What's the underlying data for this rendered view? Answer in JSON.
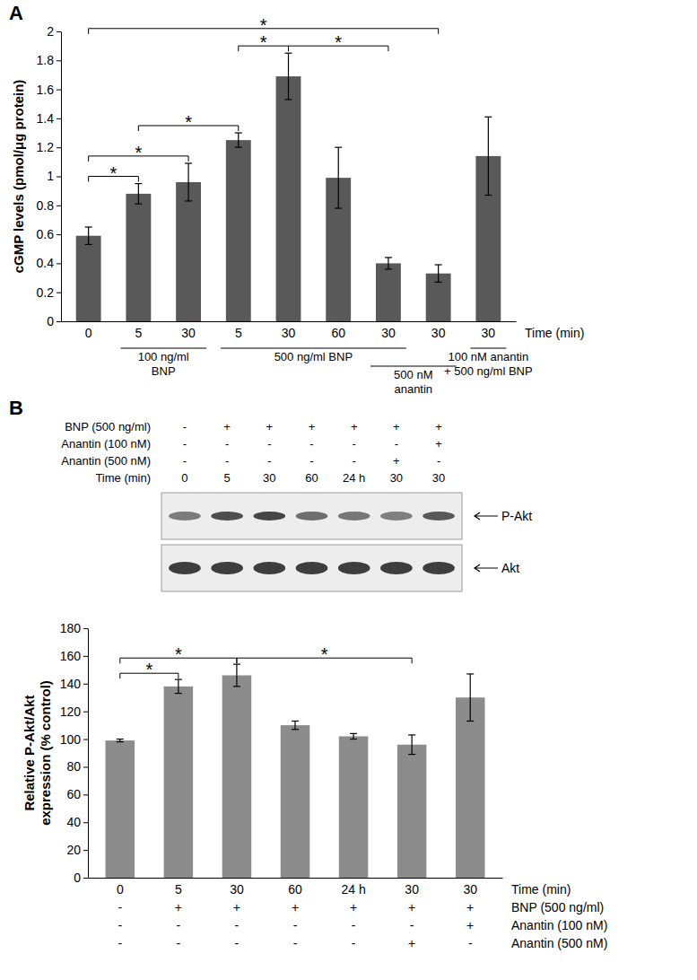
{
  "chart_data": [
    {
      "panel_label": "A",
      "type": "bar",
      "y_label": [
        "cGMP levels (pmol/μg protein)"
      ],
      "x_label": "Time (min)",
      "categories": [
        "0",
        "5",
        "30",
        "5",
        "30",
        "60",
        "30",
        "30",
        "30"
      ],
      "values": [
        0.59,
        0.88,
        0.96,
        1.25,
        1.69,
        0.99,
        0.4,
        0.33,
        1.14
      ],
      "errors": [
        0.06,
        0.07,
        0.13,
        0.05,
        0.16,
        0.21,
        0.04,
        0.06,
        0.27
      ],
      "color": "#595959",
      "ylim": [
        0,
        2
      ],
      "yticks": [
        0,
        0.2,
        0.4,
        0.6,
        0.8,
        1,
        1.2,
        1.4,
        1.6,
        1.8,
        2
      ],
      "groups": [
        {
          "label": [
            "100 ng/ml",
            "BNP"
          ],
          "from": 1,
          "to": 2
        },
        {
          "label": [
            "500 ng/ml BNP"
          ],
          "from": 3,
          "to": 6
        },
        {
          "label": [
            "500 nM",
            "anantin"
          ],
          "from": 6,
          "to": 7
        },
        {
          "label": [
            "100 nM anantin",
            "+ 500 ng/ml BNP"
          ],
          "from": 8,
          "to": 8
        }
      ],
      "brackets": [
        {
          "from": 0,
          "to": 1,
          "label": "*"
        },
        {
          "from": 0,
          "to": 2,
          "label": "*"
        },
        {
          "from": 1,
          "to": 3,
          "label": "*"
        },
        {
          "from": 3,
          "to": 4,
          "label": "*"
        },
        {
          "from": 4,
          "to": 6,
          "label": "*"
        },
        {
          "from": 0,
          "to": 7,
          "label": "*"
        }
      ]
    },
    {
      "panel_label": "B",
      "type": "bar",
      "y_label": [
        "Relative P-Akt/Akt",
        "expression (% control)"
      ],
      "x_label": "Time (min)",
      "categories": [
        "0",
        "5",
        "30",
        "60",
        "24 h",
        "30",
        "30"
      ],
      "values": [
        99,
        138,
        146,
        110,
        102,
        96,
        130
      ],
      "errors": [
        1,
        5,
        8,
        3,
        2,
        7,
        17
      ],
      "color": "#8c8c8c",
      "ylim": [
        0,
        180
      ],
      "yticks": [
        0,
        20,
        40,
        60,
        80,
        100,
        120,
        140,
        160,
        180
      ],
      "conditions": [
        {
          "label": "BNP (500 ng/ml)",
          "marks": [
            "-",
            "+",
            "+",
            "+",
            "+",
            "+",
            "+"
          ]
        },
        {
          "label": "Anantin (100 nM)",
          "marks": [
            "-",
            "-",
            "-",
            "-",
            "-",
            "-",
            "+"
          ]
        },
        {
          "label": "Anantin (500 nM)",
          "marks": [
            "-",
            "-",
            "-",
            "-",
            "-",
            "+",
            "-"
          ]
        }
      ],
      "blot": {
        "bands": [
          "P-Akt",
          "Akt"
        ]
      },
      "brackets": [
        {
          "from": 0,
          "to": 1,
          "label": "*"
        },
        {
          "from": 0,
          "to": 2,
          "label": "*"
        },
        {
          "from": 2,
          "to": 5,
          "label": "*"
        }
      ]
    }
  ]
}
